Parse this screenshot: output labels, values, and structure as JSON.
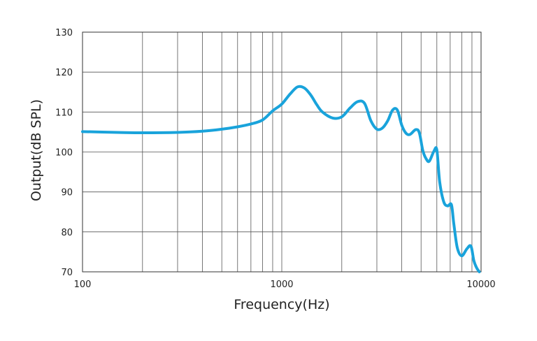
{
  "chart_data": {
    "type": "line",
    "title": "",
    "xlabel": "Frequency(Hz)",
    "ylabel": "Output(dB SPL)",
    "x_scale": "log",
    "xlim": [
      100,
      10000
    ],
    "ylim": [
      70,
      130
    ],
    "x_ticks": [
      100,
      1000,
      10000
    ],
    "x_tick_labels": [
      "100",
      "1000",
      "10000"
    ],
    "y_ticks": [
      70,
      80,
      90,
      100,
      110,
      120,
      130
    ],
    "y_tick_labels": [
      "70",
      "80",
      "90",
      "100",
      "110",
      "120",
      "130"
    ],
    "grid": true,
    "line_color": "#19a3db",
    "series": [
      {
        "x": [
          100,
          150,
          200,
          300,
          400,
          500,
          600,
          700,
          800,
          900,
          1000,
          1100,
          1200,
          1300,
          1400,
          1500,
          1600,
          1800,
          2000,
          2200,
          2400,
          2600,
          2800,
          3000,
          3200,
          3400,
          3600,
          3800,
          4000,
          4200,
          4400,
          4700,
          4900,
          5100,
          5300,
          5500,
          5800,
          6000,
          6200,
          6500,
          6800,
          7100,
          7300,
          7600,
          8000,
          8500,
          8900,
          9200,
          9500,
          9800
        ],
        "y": [
          105.1,
          104.9,
          104.8,
          104.9,
          105.2,
          105.7,
          106.3,
          107.0,
          108.0,
          110.3,
          112.0,
          114.5,
          116.3,
          116.0,
          114.2,
          111.8,
          110.0,
          108.5,
          108.8,
          111.0,
          112.6,
          112.2,
          107.8,
          105.7,
          106.0,
          107.8,
          110.5,
          110.5,
          106.7,
          104.7,
          104.4,
          105.6,
          104.8,
          100.4,
          98.3,
          97.7,
          100.2,
          100.5,
          92.5,
          87.5,
          86.5,
          86.8,
          82.0,
          76.0,
          74.0,
          75.8,
          76.4,
          72.8,
          71.0,
          70.0
        ]
      }
    ]
  }
}
